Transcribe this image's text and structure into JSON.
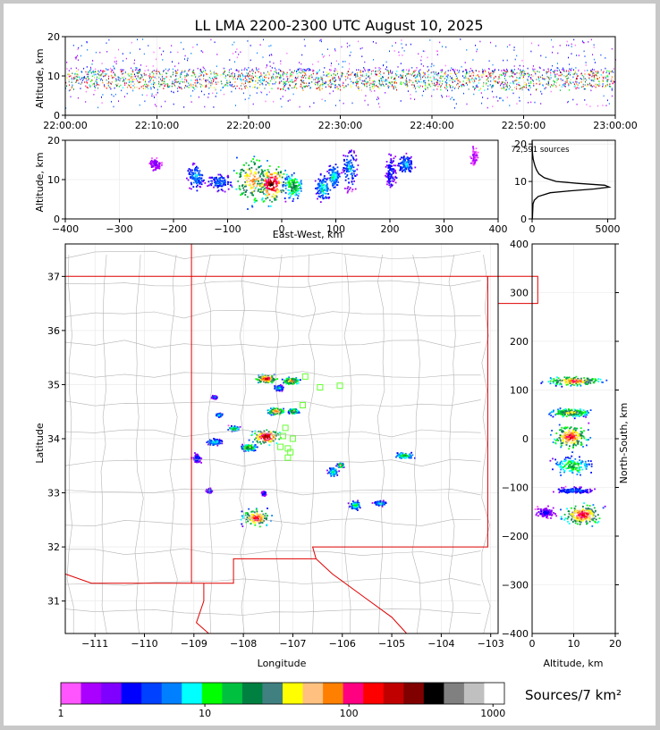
{
  "title": "LL LMA 2200-2300 UTC August 10, 2025",
  "colors": {
    "background": "#ffffff",
    "frame": "#c8c8c8",
    "state_border": "#e00000",
    "county_line": "#b4b4b4",
    "station_marker": "#66ff33",
    "altitude_histogram_line": "#000000"
  },
  "colorbar": {
    "label": "Sources/7 km²",
    "scale": "log",
    "tick_labels": [
      "1",
      "10",
      "100",
      "1000"
    ],
    "tick_values": [
      1,
      10,
      100,
      1000
    ],
    "range": [
      1,
      1200
    ],
    "colors": [
      "#ff55ff",
      "#aa00ff",
      "#8000ff",
      "#0000ff",
      "#0040ff",
      "#0080ff",
      "#00ffff",
      "#00ff00",
      "#00c040",
      "#008040",
      "#408080",
      "#ffff00",
      "#ffc080",
      "#ff8000",
      "#ff0080",
      "#ff0000",
      "#c00000",
      "#800000",
      "#000000",
      "#808080",
      "#c0c0c0",
      "#ffffff"
    ]
  },
  "chart_data": [
    {
      "id": "time-height",
      "type": "scatter",
      "ylabel": "Altitude, km",
      "xlim": [
        "22:00:00",
        "23:00:00"
      ],
      "ylim": [
        0,
        20
      ],
      "x_tick_labels": [
        "22:00:00",
        "22:10:00",
        "22:20:00",
        "22:30:00",
        "22:40:00",
        "22:50:00",
        "23:00:00"
      ],
      "y_tick_labels": [
        "0",
        "10",
        "20"
      ],
      "y_tick_values": [
        0,
        10,
        20
      ],
      "density_core_km": [
        7,
        12
      ]
    },
    {
      "id": "east-west-altitude",
      "type": "heatmap",
      "xlabel": "East-West, km",
      "ylabel": "Altitude, km",
      "xlim": [
        -400,
        400
      ],
      "ylim": [
        0,
        20
      ],
      "x_tick_labels": [
        "−400",
        "−300",
        "−200",
        "−100",
        "0",
        "100",
        "200",
        "300",
        "400"
      ],
      "x_tick_values": [
        -400,
        -300,
        -200,
        -100,
        0,
        100,
        200,
        300,
        400
      ],
      "y_tick_labels": [
        "0",
        "10",
        "20"
      ],
      "y_tick_values": [
        0,
        10,
        20
      ],
      "clusters": [
        {
          "x": -235,
          "z": 14,
          "w": 14,
          "h": 2,
          "level": 2
        },
        {
          "x": -160,
          "z": 11,
          "w": 20,
          "h": 4,
          "level": 6
        },
        {
          "x": -115,
          "z": 9.5,
          "w": 30,
          "h": 3,
          "level": 5
        },
        {
          "x": -55,
          "z": 10,
          "w": 45,
          "h": 8,
          "level": 14
        },
        {
          "x": -20,
          "z": 9,
          "w": 35,
          "h": 6,
          "level": 18
        },
        {
          "x": 20,
          "z": 8.5,
          "w": 22,
          "h": 4,
          "level": 10
        },
        {
          "x": 75,
          "z": 8,
          "w": 18,
          "h": 4,
          "level": 7
        },
        {
          "x": 95,
          "z": 11,
          "w": 14,
          "h": 4,
          "level": 7
        },
        {
          "x": 125,
          "z": 13,
          "w": 16,
          "h": 6,
          "level": 6
        },
        {
          "x": 200,
          "z": 12,
          "w": 14,
          "h": 6,
          "level": 4
        },
        {
          "x": 228,
          "z": 14,
          "w": 18,
          "h": 3,
          "level": 6
        },
        {
          "x": 355,
          "z": 16,
          "w": 8,
          "h": 3,
          "level": 1
        }
      ]
    },
    {
      "id": "altitude-histogram",
      "type": "line",
      "annotation": "72,591 sources",
      "xlim": [
        0,
        5500
      ],
      "ylim": [
        0,
        21
      ],
      "x_tick_labels": [
        "0",
        "5000"
      ],
      "x_tick_values": [
        0,
        5000
      ],
      "y_tick_labels": [
        "0",
        "10",
        "20"
      ],
      "y_tick_values": [
        0,
        10,
        20
      ],
      "altitude_km": [
        0,
        4,
        5,
        6,
        7,
        7.5,
        8,
        8.5,
        9,
        9.5,
        10,
        11,
        12,
        13,
        14,
        15,
        16,
        17,
        18,
        19,
        20,
        21
      ],
      "count": [
        20,
        60,
        150,
        400,
        1200,
        2500,
        4100,
        5100,
        4800,
        3000,
        1600,
        800,
        450,
        300,
        200,
        130,
        70,
        40,
        20,
        10,
        5,
        0
      ]
    },
    {
      "id": "plan-view",
      "type": "heatmap",
      "xlabel": "Longitude",
      "ylabel": "Latitude",
      "xlim": [
        -111.6,
        -102.85
      ],
      "ylim": [
        30.4,
        37.6
      ],
      "x_tick_labels": [
        "−111",
        "−110",
        "−109",
        "−108",
        "−107",
        "−106",
        "−105",
        "−104",
        "−103"
      ],
      "x_tick_values": [
        -111,
        -110,
        -109,
        -108,
        -107,
        -106,
        -105,
        -104,
        -103
      ],
      "y_tick_labels": [
        "31",
        "32",
        "33",
        "34",
        "35",
        "36",
        "37"
      ],
      "y_tick_values": [
        31,
        32,
        33,
        34,
        35,
        36,
        37
      ],
      "state_borders": [
        [
          [
            -111.6,
            37.0
          ],
          [
            -102.05,
            37.0
          ],
          [
            -102.05,
            36.5
          ],
          [
            -102.85,
            36.5
          ]
        ],
        [
          [
            -109.05,
            37.6
          ],
          [
            -109.05,
            31.33
          ]
        ],
        [
          [
            -111.6,
            31.5
          ],
          [
            -111.07,
            31.33
          ],
          [
            -108.2,
            31.33
          ],
          [
            -108.2,
            31.78
          ],
          [
            -106.53,
            31.78
          ],
          [
            -106.6,
            32.0
          ],
          [
            -103.06,
            32.0
          ],
          [
            -103.06,
            37.0
          ]
        ],
        [
          [
            -108.8,
            31.33
          ],
          [
            -108.8,
            31.0
          ],
          [
            -108.95,
            30.6
          ],
          [
            -108.7,
            30.4
          ]
        ],
        [
          [
            -106.53,
            31.78
          ],
          [
            -106.2,
            31.5
          ],
          [
            -105.6,
            31.1
          ],
          [
            -105.0,
            30.7
          ],
          [
            -104.7,
            30.4
          ]
        ]
      ],
      "stations": [
        [
          -106.75,
          35.15
        ],
        [
          -106.45,
          34.95
        ],
        [
          -106.05,
          34.98
        ],
        [
          -106.8,
          34.62
        ],
        [
          -107.15,
          34.2
        ],
        [
          -107.2,
          34.05
        ],
        [
          -107.0,
          34.0
        ],
        [
          -107.25,
          33.85
        ],
        [
          -107.1,
          33.82
        ],
        [
          -107.05,
          33.75
        ],
        [
          -107.1,
          33.65
        ]
      ],
      "clusters": [
        {
          "lon": -107.55,
          "lat": 35.12,
          "w": 0.25,
          "h": 0.1,
          "level": 17
        },
        {
          "lon": -107.05,
          "lat": 35.08,
          "w": 0.2,
          "h": 0.08,
          "level": 14
        },
        {
          "lon": -107.3,
          "lat": 34.95,
          "w": 0.12,
          "h": 0.06,
          "level": 7
        },
        {
          "lon": -107.35,
          "lat": 34.52,
          "w": 0.2,
          "h": 0.08,
          "level": 15
        },
        {
          "lon": -107.0,
          "lat": 34.52,
          "w": 0.12,
          "h": 0.06,
          "level": 13
        },
        {
          "lon": -107.55,
          "lat": 34.05,
          "w": 0.35,
          "h": 0.18,
          "level": 18
        },
        {
          "lon": -108.2,
          "lat": 34.2,
          "w": 0.15,
          "h": 0.06,
          "level": 9
        },
        {
          "lon": -108.6,
          "lat": 33.95,
          "w": 0.2,
          "h": 0.08,
          "level": 7
        },
        {
          "lon": -108.95,
          "lat": 33.65,
          "w": 0.12,
          "h": 0.12,
          "level": 4
        },
        {
          "lon": -108.7,
          "lat": 33.05,
          "w": 0.08,
          "h": 0.05,
          "level": 5
        },
        {
          "lon": -107.6,
          "lat": 33.0,
          "w": 0.06,
          "h": 0.05,
          "level": 4
        },
        {
          "lon": -107.75,
          "lat": 32.55,
          "w": 0.35,
          "h": 0.2,
          "level": 16
        },
        {
          "lon": -106.2,
          "lat": 33.4,
          "w": 0.12,
          "h": 0.12,
          "level": 8
        },
        {
          "lon": -106.05,
          "lat": 33.52,
          "w": 0.08,
          "h": 0.05,
          "level": 12
        },
        {
          "lon": -105.75,
          "lat": 32.78,
          "w": 0.15,
          "h": 0.1,
          "level": 8
        },
        {
          "lon": -105.25,
          "lat": 32.82,
          "w": 0.15,
          "h": 0.06,
          "level": 7
        },
        {
          "lon": -104.75,
          "lat": 33.7,
          "w": 0.25,
          "h": 0.08,
          "level": 9
        },
        {
          "lon": -108.6,
          "lat": 34.78,
          "w": 0.08,
          "h": 0.04,
          "level": 5
        },
        {
          "lon": -108.5,
          "lat": 34.45,
          "w": 0.08,
          "h": 0.04,
          "level": 8
        },
        {
          "lon": -107.9,
          "lat": 33.85,
          "w": 0.18,
          "h": 0.08,
          "level": 11
        }
      ]
    },
    {
      "id": "altitude-north-south",
      "type": "heatmap",
      "xlabel": "Altitude, km",
      "ylabel": "North-South, km",
      "xlim": [
        0,
        20
      ],
      "ylim": [
        -400,
        400
      ],
      "x_tick_labels": [
        "0",
        "10",
        "20"
      ],
      "x_tick_values": [
        0,
        10,
        20
      ],
      "y_tick_labels": [
        "−400",
        "−300",
        "−200",
        "−100",
        "0",
        "100",
        "200",
        "300",
        "400"
      ],
      "y_tick_values": [
        -400,
        -300,
        -200,
        -100,
        0,
        100,
        200,
        300,
        400
      ],
      "clusters": [
        {
          "z": 10,
          "y": 120,
          "w": 8,
          "h": 12,
          "level": 15
        },
        {
          "z": 9,
          "y": 55,
          "w": 6,
          "h": 12,
          "level": 12
        },
        {
          "z": 9,
          "y": 5,
          "w": 5,
          "h": 30,
          "level": 16
        },
        {
          "z": 9.5,
          "y": -55,
          "w": 6,
          "h": 25,
          "level": 9
        },
        {
          "z": 10,
          "y": -105,
          "w": 6,
          "h": 8,
          "level": 5
        },
        {
          "z": 12,
          "y": -155,
          "w": 6,
          "h": 28,
          "level": 16
        },
        {
          "z": 3,
          "y": -150,
          "w": 3,
          "h": 14,
          "level": 3
        }
      ]
    }
  ]
}
